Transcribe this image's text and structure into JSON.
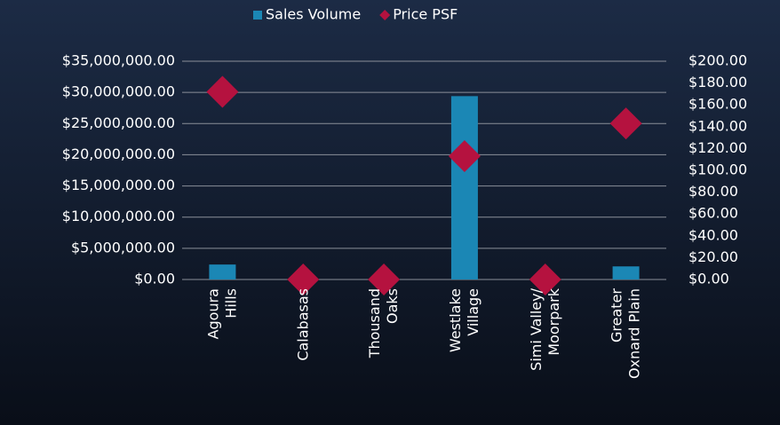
{
  "chart_data": {
    "type": "bar+scatter",
    "categories": [
      [
        "Agoura",
        "Hills"
      ],
      [
        "Calabasas"
      ],
      [
        "Thousand",
        "Oaks"
      ],
      [
        "Westlake",
        "Village"
      ],
      [
        "Simi Valley/",
        "Moorpark"
      ],
      [
        "Greater",
        "Oxnard Plain"
      ]
    ],
    "series": [
      {
        "name": "Sales Volume",
        "type": "bar",
        "color": "#1b87b5",
        "values": [
          2400000,
          0,
          0,
          29400000,
          0,
          2100000
        ]
      },
      {
        "name": "Price PSF",
        "type": "scatter",
        "axis": "y2",
        "color": "#b5123f",
        "values": [
          172,
          0,
          0,
          113,
          0,
          143
        ]
      }
    ],
    "ylim": [
      0,
      35000000
    ],
    "yticks": [
      {
        "value": 0,
        "label": "$0.00"
      },
      {
        "value": 5000000,
        "label": "$5,000,000.00"
      },
      {
        "value": 10000000,
        "label": "$10,000,000.00"
      },
      {
        "value": 15000000,
        "label": "$15,000,000.00"
      },
      {
        "value": 20000000,
        "label": "$20,000,000.00"
      },
      {
        "value": 25000000,
        "label": "$25,000,000.00"
      },
      {
        "value": 30000000,
        "label": "$30,000,000.00"
      },
      {
        "value": 35000000,
        "label": "$35,000,000.00"
      }
    ],
    "y2lim": [
      0,
      200
    ],
    "y2ticks": [
      {
        "value": 0,
        "label": "$0.00"
      },
      {
        "value": 20,
        "label": "$20.00"
      },
      {
        "value": 40,
        "label": "$40.00"
      },
      {
        "value": 60,
        "label": "$60.00"
      },
      {
        "value": 80,
        "label": "$80.00"
      },
      {
        "value": 100,
        "label": "$100.00"
      },
      {
        "value": 120,
        "label": "$120.00"
      },
      {
        "value": 140,
        "label": "$140.00"
      },
      {
        "value": 160,
        "label": "$160.00"
      },
      {
        "value": 180,
        "label": "$180.00"
      },
      {
        "value": 200,
        "label": "$200.00"
      }
    ],
    "grid": true,
    "legend": "top"
  }
}
